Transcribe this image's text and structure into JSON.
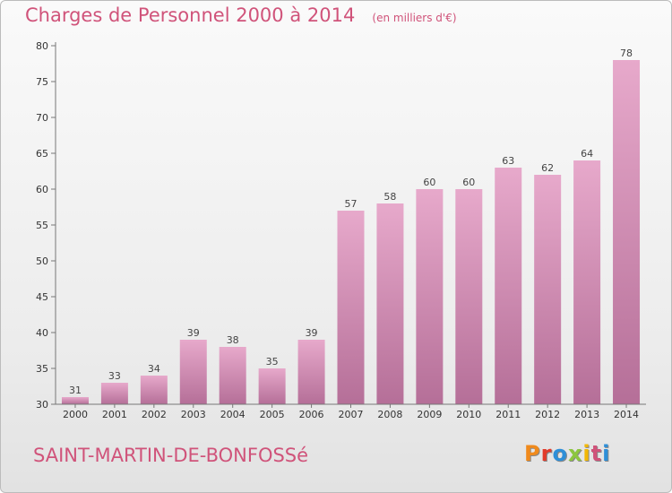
{
  "header": {
    "title": "Charges de Personnel 2000 à 2014",
    "subtitle": "(en milliers d'€)"
  },
  "footer": {
    "place": "SAINT-MARTIN-DE-BONFOSSé",
    "brand": "Proxiti",
    "brand_colors": [
      "#f08a1c",
      "#e23b2a",
      "#2e8fd8",
      "#8cc63f",
      "#f2b705",
      "#d0537a",
      "#2e8fd8"
    ]
  },
  "colors": {
    "bar_light": "#e7a9cb",
    "bar_dark": "#b56f98",
    "accent": "#d0537a"
  },
  "chart_data": {
    "type": "bar",
    "categories": [
      "2000",
      "2001",
      "2002",
      "2003",
      "2004",
      "2005",
      "2006",
      "2007",
      "2008",
      "2009",
      "2010",
      "2011",
      "2012",
      "2013",
      "2014"
    ],
    "values": [
      31,
      33,
      34,
      39,
      38,
      35,
      39,
      57,
      58,
      60,
      60,
      63,
      62,
      64,
      78
    ],
    "ylim": [
      30,
      80
    ],
    "yticks": [
      30,
      35,
      40,
      45,
      50,
      55,
      60,
      65,
      70,
      75,
      80
    ],
    "grid": false,
    "legend": "none"
  }
}
